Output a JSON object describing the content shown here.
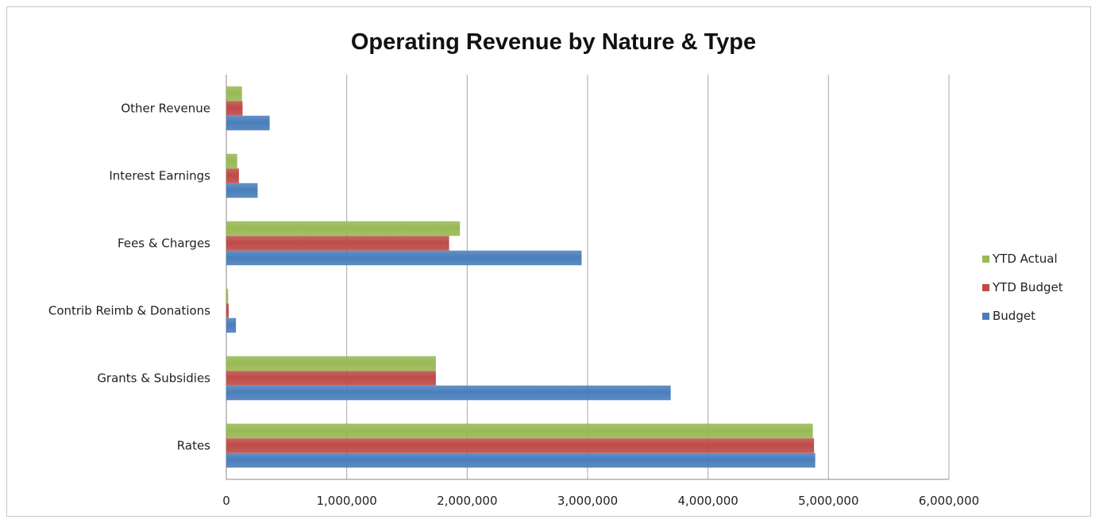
{
  "chart_data": {
    "type": "bar",
    "orientation": "horizontal",
    "title": "Operating Revenue by Nature & Type",
    "xlabel": "",
    "ylabel": "",
    "xlim": [
      0,
      6000000
    ],
    "x_ticks": [
      0,
      1000000,
      2000000,
      3000000,
      4000000,
      5000000,
      6000000
    ],
    "x_tick_labels": [
      "0",
      "1,000,000",
      "2,000,000",
      "3,000,000",
      "4,000,000",
      "5,000,000",
      "6,000,000"
    ],
    "grid": "vertical major gridlines",
    "legend_position": "right",
    "categories": [
      "Rates",
      "Grants & Subsidies",
      "Contrib Reimb & Donations",
      "Fees & Charges",
      "Interest Earnings",
      "Other Revenue"
    ],
    "series": [
      {
        "name": "Budget",
        "color": "#4a7ebb",
        "values": [
          4890000,
          3690000,
          80000,
          2950000,
          260000,
          360000
        ]
      },
      {
        "name": "YTD Budget",
        "color": "#be4b48",
        "values": [
          4880000,
          1740000,
          20000,
          1850000,
          105000,
          135000
        ]
      },
      {
        "name": "YTD Actual",
        "color": "#98b954",
        "values": [
          4870000,
          1740000,
          15000,
          1940000,
          90000,
          130000
        ]
      }
    ],
    "legend_order": [
      "YTD Actual",
      "YTD Budget",
      "Budget"
    ]
  }
}
